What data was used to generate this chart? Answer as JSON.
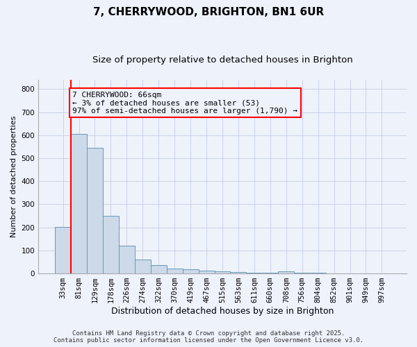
{
  "title": "7, CHERRYWOOD, BRIGHTON, BN1 6UR",
  "subtitle": "Size of property relative to detached houses in Brighton",
  "xlabel": "Distribution of detached houses by size in Brighton",
  "ylabel": "Number of detached properties",
  "bar_color": "#ccd9e8",
  "bar_edge_color": "#6699bb",
  "categories": [
    "33sqm",
    "81sqm",
    "129sqm",
    "178sqm",
    "226sqm",
    "274sqm",
    "322sqm",
    "370sqm",
    "419sqm",
    "467sqm",
    "515sqm",
    "563sqm",
    "611sqm",
    "660sqm",
    "708sqm",
    "756sqm",
    "804sqm",
    "852sqm",
    "901sqm",
    "949sqm",
    "997sqm"
  ],
  "values": [
    202,
    605,
    545,
    250,
    120,
    60,
    35,
    20,
    18,
    12,
    8,
    5,
    4,
    3,
    8,
    2,
    2,
    1,
    1,
    1,
    1
  ],
  "ylim": [
    0,
    840
  ],
  "yticks": [
    0,
    100,
    200,
    300,
    400,
    500,
    600,
    700,
    800
  ],
  "annotation_line1": "7 CHERRYWOOD: 66sqm",
  "annotation_line2": "← 3% of detached houses are smaller (53)",
  "annotation_line3": "97% of semi-detached houses are larger (1,790) →",
  "vline_x_index": 0,
  "background_color": "#eef2fb",
  "grid_color": "#c5cde0",
  "footer": "Contains HM Land Registry data © Crown copyright and database right 2025.\nContains public sector information licensed under the Open Government Licence v3.0.",
  "title_fontsize": 11,
  "subtitle_fontsize": 9.5,
  "xlabel_fontsize": 9,
  "ylabel_fontsize": 8,
  "tick_fontsize": 7.5,
  "annotation_fontsize": 8,
  "footer_fontsize": 6.5
}
